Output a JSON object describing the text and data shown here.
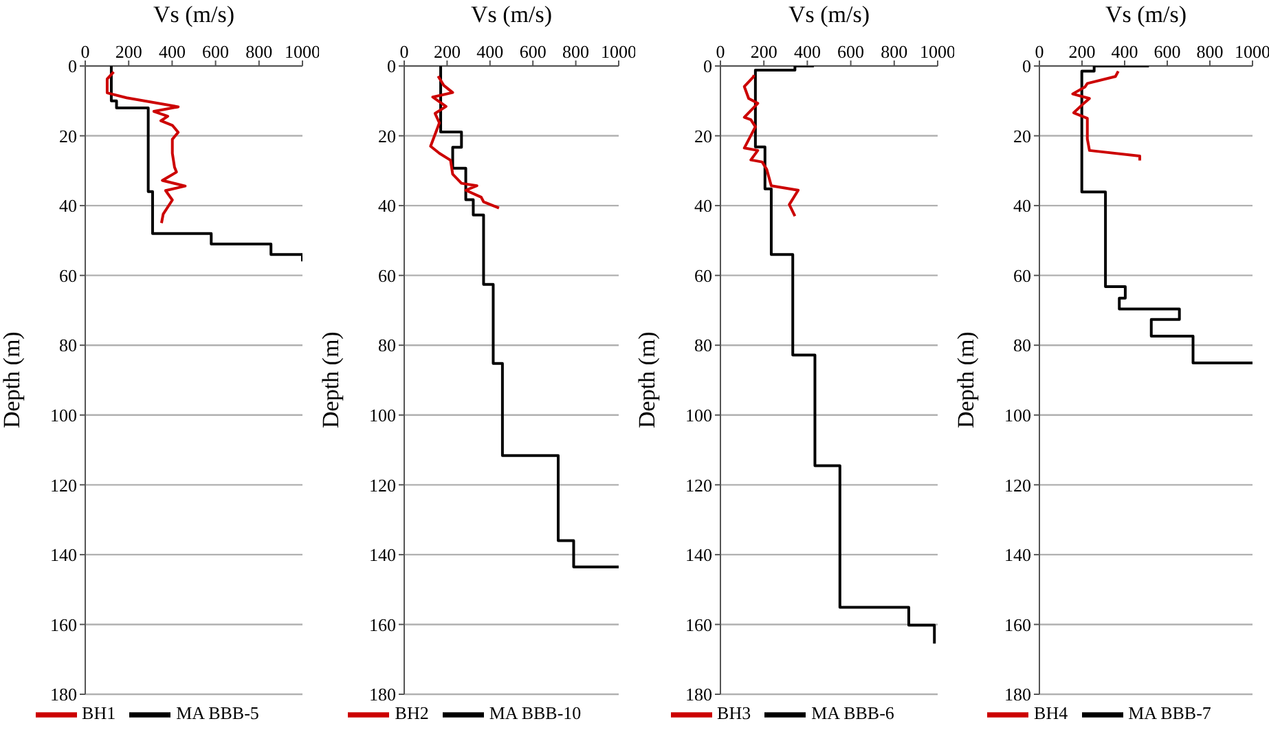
{
  "chart_data": [
    {
      "type": "line",
      "xlabel": "Vs (m/s)",
      "ylabel": "Depth (m)",
      "xlim": [
        0,
        1000
      ],
      "xticks": [
        0,
        200,
        400,
        600,
        800,
        1000
      ],
      "ylim": [
        180,
        0
      ],
      "yticks": [
        0,
        20,
        40,
        60,
        80,
        100,
        120,
        140,
        160,
        180
      ],
      "grid": "y",
      "legend": "bottom",
      "marker": "none",
      "series": [
        {
          "name": "MA BBB-5",
          "color": "#000000",
          "x": [
            120,
            120,
            144,
            144,
            290,
            290,
            310,
            310,
            580,
            580,
            855,
            855,
            1000,
            1000
          ],
          "values": [
            0,
            10,
            10,
            12,
            12,
            36,
            36,
            48,
            48,
            51,
            51,
            54,
            54,
            56
          ]
        },
        {
          "name": "BH1",
          "color": "#cc0000",
          "x": [
            131,
            101,
            101,
            190,
            428,
            316,
            380,
            348,
            401,
            428,
            401,
            401,
            411,
            420,
            355,
            460,
            370,
            401,
            359,
            351
          ],
          "values": [
            1.7,
            3.7,
            7.7,
            9.1,
            11.7,
            13,
            14.4,
            15.7,
            17,
            19,
            21,
            25,
            29,
            30.4,
            32.8,
            34.4,
            35.7,
            38.4,
            42.4,
            45
          ]
        }
      ]
    },
    {
      "type": "line",
      "xlabel": "Vs (m/s)",
      "ylabel": "Depth (m)",
      "xlim": [
        0,
        1000
      ],
      "xticks": [
        0,
        200,
        400,
        600,
        800,
        1000
      ],
      "ylim": [
        180,
        0
      ],
      "yticks": [
        0,
        20,
        40,
        60,
        80,
        100,
        120,
        140,
        160,
        180
      ],
      "grid": "y",
      "legend": "bottom",
      "marker": "none",
      "series": [
        {
          "name": "MA BBB-10",
          "color": "#000000",
          "x": [
            170,
            170,
            267,
            267,
            226,
            226,
            287,
            287,
            322,
            322,
            370,
            370,
            415,
            415,
            458,
            458,
            718,
            718,
            790,
            790,
            1000
          ],
          "values": [
            0,
            18.9,
            18.9,
            23.3,
            23.3,
            29.3,
            29.3,
            38.3,
            38.3,
            42.7,
            42.7,
            62.6,
            62.6,
            85.2,
            85.2,
            111.6,
            111.6,
            136,
            136,
            143.5,
            143.5
          ]
        },
        {
          "name": "BH2",
          "color": "#cc0000",
          "x": [
            158,
            185,
            226,
            133,
            195,
            144,
            164,
            123,
            164,
            216,
            226,
            267,
            339,
            287,
            359,
            370,
            442
          ],
          "values": [
            2.9,
            5.6,
            7.6,
            8.9,
            11.6,
            13.6,
            16.3,
            23,
            25,
            27,
            31,
            33.6,
            34.3,
            35.6,
            37.6,
            38.9,
            40.7
          ]
        }
      ]
    },
    {
      "type": "line",
      "xlabel": "Vs (m/s)",
      "ylabel": "Depth (m)",
      "xlim": [
        0,
        1000
      ],
      "xticks": [
        0,
        200,
        400,
        600,
        800,
        1000
      ],
      "ylim": [
        180,
        0
      ],
      "yticks": [
        0,
        20,
        40,
        60,
        80,
        100,
        120,
        140,
        160,
        180
      ],
      "grid": "y",
      "legend": "bottom",
      "marker": "none",
      "series": [
        {
          "name": "MA BBB-6",
          "color": "#000000",
          "x": [
            430,
            343,
            343,
            161,
            161,
            205,
            205,
            234,
            234,
            333,
            333,
            435,
            435,
            550,
            550,
            867,
            867,
            985,
            985
          ],
          "values": [
            0,
            0,
            1.2,
            1.2,
            23.2,
            23.2,
            35.2,
            35.2,
            54,
            54,
            82.8,
            82.8,
            114.5,
            114.5,
            155.1,
            155.1,
            160.2,
            160.2,
            165.5
          ]
        },
        {
          "name": "BH3",
          "color": "#cc0000",
          "x": [
            155,
            151,
            110,
            130,
            172,
            110,
            140,
            161,
            110,
            172,
            140,
            192,
            213,
            234,
            358,
            317,
            343
          ],
          "values": [
            2.6,
            3.2,
            5.9,
            9.3,
            10.7,
            14.7,
            15.4,
            17.4,
            23.5,
            24.2,
            26.9,
            27.5,
            29.6,
            34.3,
            35.6,
            39.7,
            43
          ]
        }
      ]
    },
    {
      "type": "line",
      "xlabel": "Vs (m/s)",
      "ylabel": "Depth (m)",
      "xlim": [
        0,
        1000
      ],
      "xticks": [
        0,
        200,
        400,
        600,
        800,
        1000
      ],
      "ylim": [
        180,
        0
      ],
      "yticks": [
        0,
        20,
        40,
        60,
        80,
        100,
        120,
        140,
        160,
        180
      ],
      "grid": "y",
      "legend": "bottom",
      "marker": "none",
      "series": [
        {
          "name": "MA BBB-7",
          "color": "#000000",
          "x": [
            514,
            257,
            257,
            199,
            199,
            310,
            310,
            403,
            403,
            375,
            375,
            657,
            657,
            525,
            525,
            721,
            721,
            1000
          ],
          "values": [
            0,
            0,
            1.5,
            1.5,
            36.1,
            36.1,
            63.2,
            63.2,
            66.5,
            66.5,
            69.6,
            69.6,
            72.6,
            72.6,
            77.4,
            77.4,
            85.1,
            85.1
          ]
        },
        {
          "name": "BH4",
          "color": "#cc0000",
          "x": [
            370,
            357,
            225,
            214,
            156,
            235,
            203,
            161,
            225,
            225,
            235,
            471,
            471
          ],
          "values": [
            1.5,
            3,
            5,
            6,
            8,
            9.3,
            11,
            13.4,
            15,
            20.9,
            24.2,
            25.8,
            27.1
          ]
        }
      ]
    }
  ]
}
